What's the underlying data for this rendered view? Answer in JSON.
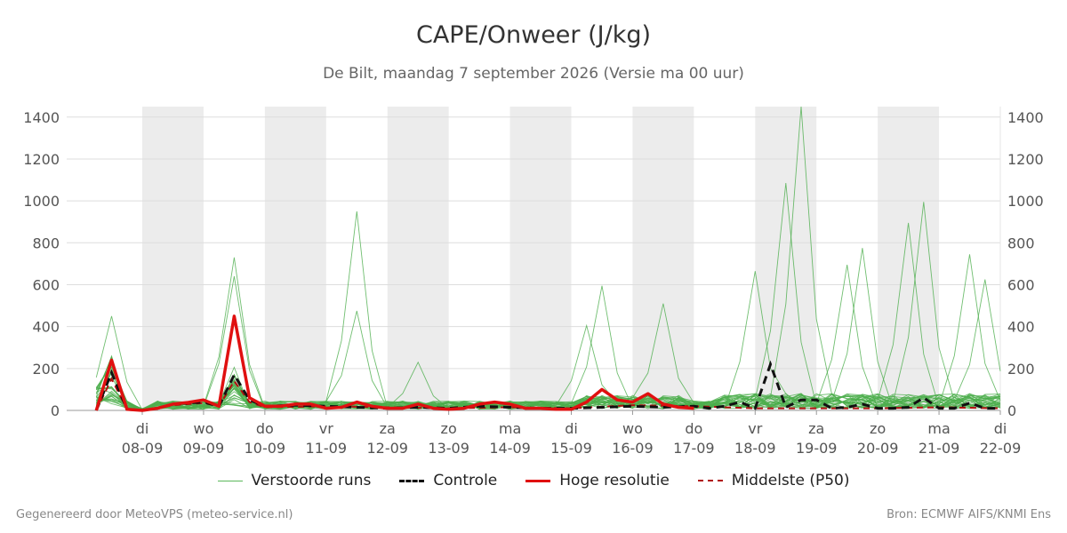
{
  "title": "CAPE/Onweer (J/kg)",
  "subtitle": "De Bilt, maandag  7 september 2026 (Versie ma 00 uur)",
  "footer": {
    "left": "Gegenereerd door MeteoVPS (meteo-service.nl)",
    "right": "Bron: ECMWF AIFS/KNMI Ens"
  },
  "legend": [
    {
      "label": "Verstoorde runs",
      "color": "#5cb85c",
      "style": "thin"
    },
    {
      "label": "Controle",
      "color": "#111111",
      "style": "dashed"
    },
    {
      "label": "Hoge resolutie",
      "color": "#e01010",
      "style": "solid"
    },
    {
      "label": "Middelste (P50)",
      "color": "#b01010",
      "style": "dashed"
    }
  ],
  "chart_data": {
    "type": "line",
    "ylim": [
      0,
      1450
    ],
    "yticks": [
      0,
      200,
      400,
      600,
      800,
      1000,
      1200,
      1400
    ],
    "x_range": [
      -1.5,
      15
    ],
    "x_ticks": [
      {
        "x": 0,
        "day": "di",
        "date": "08-09"
      },
      {
        "x": 1,
        "day": "wo",
        "date": "09-09"
      },
      {
        "x": 2,
        "day": "do",
        "date": "10-09"
      },
      {
        "x": 3,
        "day": "vr",
        "date": "11-09"
      },
      {
        "x": 4,
        "day": "za",
        "date": "12-09"
      },
      {
        "x": 5,
        "day": "zo",
        "date": "13-09"
      },
      {
        "x": 6,
        "day": "ma",
        "date": "14-09"
      },
      {
        "x": 7,
        "day": "di",
        "date": "15-09"
      },
      {
        "x": 8,
        "day": "wo",
        "date": "16-09"
      },
      {
        "x": 9,
        "day": "do",
        "date": "17-09"
      },
      {
        "x": 10,
        "day": "vr",
        "date": "18-09"
      },
      {
        "x": 11,
        "day": "za",
        "date": "19-09"
      },
      {
        "x": 12,
        "day": "zo",
        "date": "20-09"
      },
      {
        "x": 13,
        "day": "ma",
        "date": "21-09"
      },
      {
        "x": 14,
        "day": "di",
        "date": "22-09"
      }
    ],
    "shaded_days": [
      [
        0,
        1
      ],
      [
        2,
        3
      ],
      [
        4,
        5
      ],
      [
        6,
        7
      ],
      [
        8,
        9
      ],
      [
        10,
        11
      ],
      [
        12,
        13
      ]
    ],
    "hires": {
      "name": "Hoge resolutie",
      "x": [
        -0.75,
        -0.5,
        -0.25,
        0,
        0.25,
        0.5,
        0.75,
        1,
        1.25,
        1.5,
        1.75,
        2,
        2.25,
        2.5,
        2.75,
        3,
        3.25,
        3.5,
        3.75,
        4,
        4.25,
        4.5,
        4.75,
        5,
        5.25,
        5.5,
        5.75,
        6,
        6.25,
        6.5,
        6.75,
        7,
        7.25,
        7.5,
        7.75,
        8,
        8.25,
        8.5,
        8.75,
        9
      ],
      "values": [
        0,
        240,
        5,
        0,
        10,
        30,
        38,
        50,
        20,
        450,
        60,
        20,
        20,
        30,
        30,
        10,
        15,
        40,
        20,
        10,
        10,
        30,
        10,
        5,
        10,
        30,
        40,
        30,
        10,
        10,
        5,
        5,
        40,
        100,
        50,
        40,
        80,
        30,
        15,
        10
      ]
    },
    "control": {
      "name": "Controle",
      "x": [
        -0.75,
        -0.5,
        -0.25,
        0,
        0.25,
        0.5,
        0.75,
        1,
        1.25,
        1.5,
        1.75,
        2,
        2.5,
        3,
        3.5,
        4,
        4.5,
        5,
        5.5,
        6,
        6.5,
        7,
        7.5,
        8,
        8.5,
        9,
        9.25,
        9.5,
        9.75,
        10,
        10.25,
        10.5,
        10.75,
        11,
        11.25,
        11.5,
        11.75,
        12,
        12.25,
        12.5,
        12.75,
        13,
        13.25,
        13.5,
        13.75,
        14
      ],
      "values": [
        0,
        180,
        5,
        0,
        10,
        30,
        35,
        40,
        20,
        170,
        50,
        20,
        25,
        20,
        15,
        10,
        15,
        10,
        20,
        15,
        10,
        10,
        15,
        20,
        15,
        20,
        10,
        20,
        40,
        10,
        220,
        15,
        50,
        50,
        10,
        15,
        30,
        10,
        10,
        15,
        60,
        10,
        10,
        35,
        10,
        10
      ]
    },
    "p50": {
      "name": "Middelste (P50)",
      "x": [
        -0.75,
        -0.5,
        -0.25,
        0,
        0.5,
        1,
        1.25,
        1.5,
        1.75,
        2,
        3,
        4,
        5,
        6,
        7,
        8,
        9,
        10,
        11,
        12,
        13,
        14
      ],
      "values": [
        0,
        150,
        5,
        0,
        25,
        35,
        20,
        140,
        40,
        15,
        20,
        15,
        10,
        15,
        10,
        25,
        20,
        10,
        10,
        10,
        15,
        10
      ]
    },
    "ensemble_peaks": [
      {
        "x": -0.5,
        "value": 450
      },
      {
        "x": 1.5,
        "value": 730
      },
      {
        "x": 1.5,
        "value": 640
      },
      {
        "x": 3.5,
        "value": 950
      },
      {
        "x": 3.5,
        "value": 475
      },
      {
        "x": 4.5,
        "value": 230
      },
      {
        "x": 7.25,
        "value": 405
      },
      {
        "x": 7.5,
        "value": 595
      },
      {
        "x": 8.5,
        "value": 510
      },
      {
        "x": 10,
        "value": 665
      },
      {
        "x": 10.5,
        "value": 1085
      },
      {
        "x": 10.75,
        "value": 1450
      },
      {
        "x": 11.5,
        "value": 695
      },
      {
        "x": 11.75,
        "value": 775
      },
      {
        "x": 12.5,
        "value": 895
      },
      {
        "x": 12.75,
        "value": 995
      },
      {
        "x": 13.5,
        "value": 745
      },
      {
        "x": 13.75,
        "value": 625
      }
    ]
  }
}
